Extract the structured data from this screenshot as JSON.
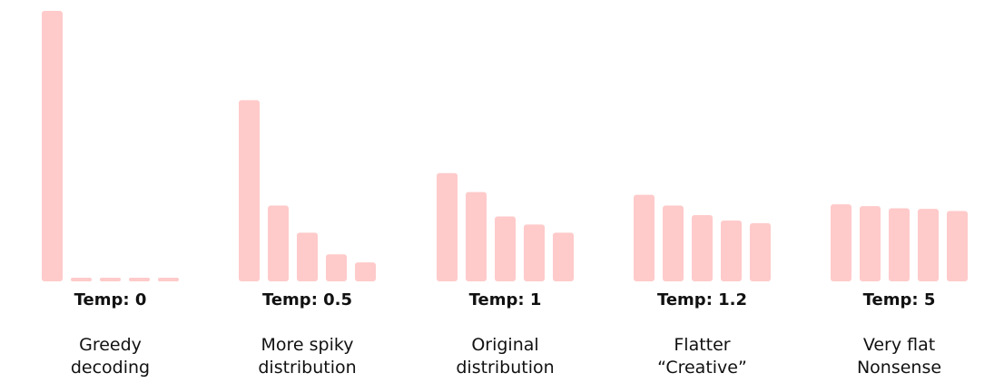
{
  "chart_data": {
    "type": "bar",
    "bar_color": "#ffcaca",
    "panels": [
      {
        "temp_label": "Temp: 0",
        "desc_lines": [
          "Greedy",
          "decoding"
        ],
        "values": [
          1.0,
          0.012,
          0.012,
          0.012,
          0.012
        ]
      },
      {
        "temp_label": "Temp: 0.5",
        "desc_lines": [
          "More spiky",
          "distribution"
        ],
        "values": [
          0.67,
          0.28,
          0.18,
          0.1,
          0.07
        ]
      },
      {
        "temp_label": "Temp: 1",
        "desc_lines": [
          "Original",
          "distribution"
        ],
        "values": [
          0.4,
          0.33,
          0.24,
          0.21,
          0.18
        ]
      },
      {
        "temp_label": "Temp: 1.2",
        "desc_lines": [
          "Flatter",
          "“Creative”"
        ],
        "values": [
          0.32,
          0.28,
          0.245,
          0.225,
          0.215
        ]
      },
      {
        "temp_label": "Temp: 5",
        "desc_lines": [
          "Very flat",
          "Nonsense"
        ],
        "values": [
          0.285,
          0.278,
          0.27,
          0.268,
          0.26
        ]
      }
    ]
  }
}
